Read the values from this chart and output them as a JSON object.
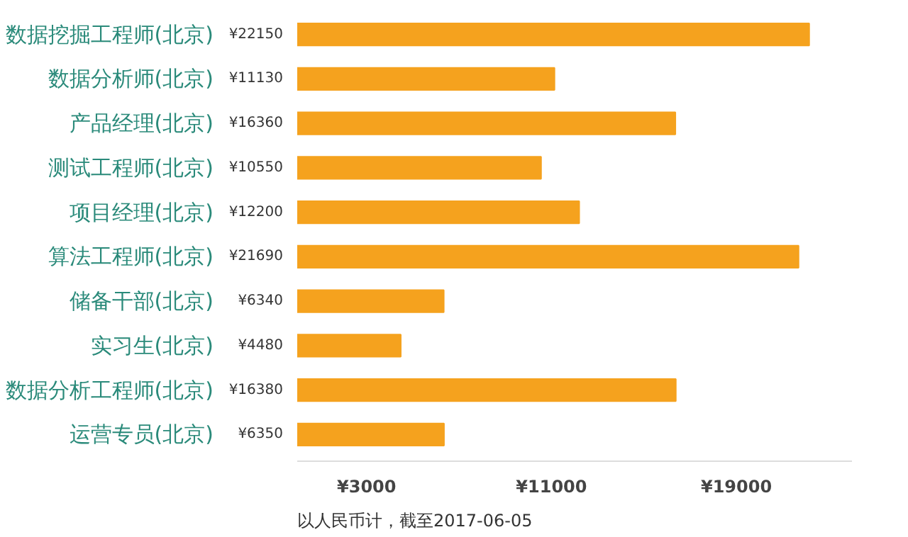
{
  "chart_data": {
    "type": "bar",
    "orientation": "horizontal",
    "categories": [
      "数据挖掘工程师(北京)",
      "数据分析师(北京)",
      "产品经理(北京)",
      "测试工程师(北京)",
      "项目经理(北京)",
      "算法工程师(北京)",
      "储备干部(北京)",
      "实习生(北京)",
      "数据分析工程师(北京)",
      "运营专员(北京)"
    ],
    "values": [
      22150,
      11130,
      16360,
      10550,
      12200,
      21690,
      6340,
      4480,
      16380,
      6350
    ],
    "value_labels": [
      "¥22150",
      "¥11130",
      "¥16360",
      "¥10550",
      "¥12200",
      "¥21690",
      "¥6340",
      "¥4480",
      "¥16380",
      "¥6350"
    ],
    "color": "#f5a21e",
    "xlim": [
      0,
      24000
    ],
    "xticks": [
      {
        "value": 3000,
        "label": "¥3000"
      },
      {
        "value": 11000,
        "label": "¥11000"
      },
      {
        "value": 19000,
        "label": "¥19000"
      }
    ],
    "grid": false,
    "annotations": [
      "以人民币计，截至2017-06-05"
    ]
  }
}
